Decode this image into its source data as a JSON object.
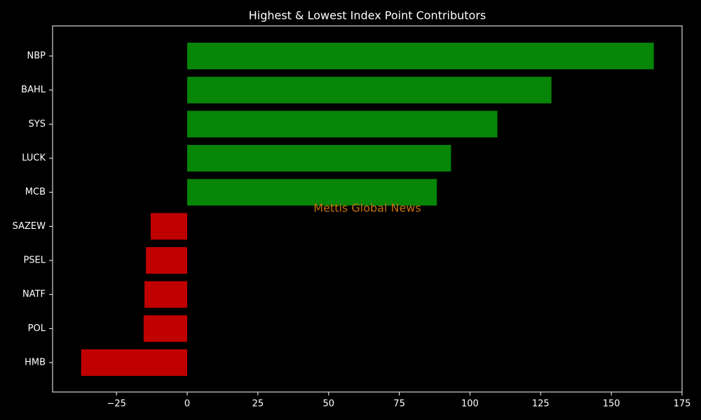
{
  "chart_data": {
    "type": "barh",
    "title": "Highest & Lowest Index Point Contributors",
    "watermark": "Mettis Global News",
    "categories": [
      "NBP",
      "BAHL",
      "SYS",
      "LUCK",
      "MCB",
      "SAZEW",
      "PSEL",
      "NATF",
      "POL",
      "HMB"
    ],
    "values": [
      165.0,
      128.8,
      109.7,
      93.3,
      88.3,
      -12.9,
      -14.6,
      -15.1,
      -15.4,
      -37.5
    ],
    "colors": [
      "#078507",
      "#078507",
      "#078507",
      "#078507",
      "#078507",
      "#c00000",
      "#c00000",
      "#c00000",
      "#c00000",
      "#c00000"
    ],
    "xlim": [
      -47.6,
      175
    ],
    "xticks": [
      {
        "value": -25,
        "label": "−25"
      },
      0,
      25,
      50,
      75,
      100,
      125,
      150,
      175
    ]
  }
}
